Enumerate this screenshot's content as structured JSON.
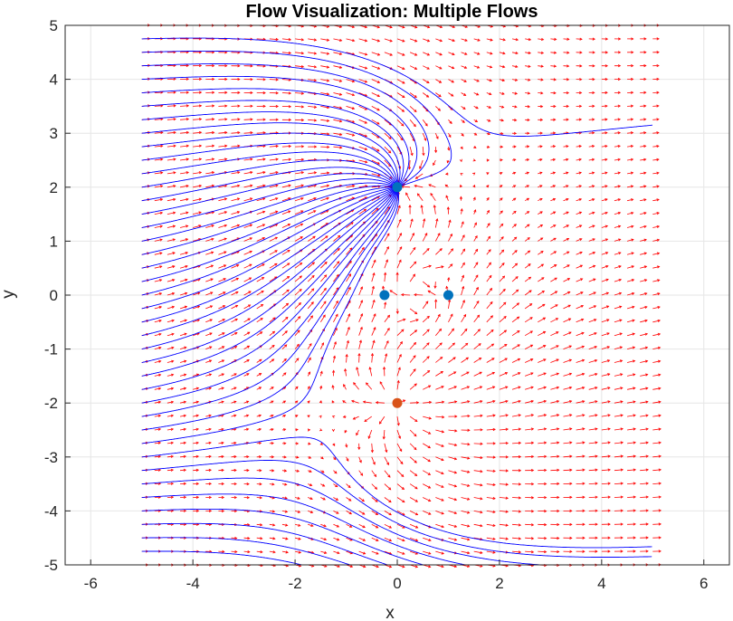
{
  "chart_data": {
    "type": "streamline",
    "title": "Flow Visualization: Multiple Flows",
    "xlabel": "x",
    "ylabel": "y",
    "xlim": [
      -6.5,
      6.5
    ],
    "ylim": [
      -5,
      5
    ],
    "xticks": [
      -6,
      -4,
      -2,
      0,
      2,
      4,
      6
    ],
    "yticks": [
      -5,
      -4,
      -3,
      -2,
      -1,
      0,
      1,
      2,
      3,
      4,
      5
    ],
    "grid": true,
    "field_domain": {
      "x": [
        -5,
        5
      ],
      "y": [
        -5,
        5
      ]
    },
    "uniform_flow": 1,
    "singularities": [
      {
        "kind": "sink",
        "x": 0,
        "y": 2,
        "strength": 1,
        "color": "#0072BD"
      },
      {
        "kind": "doublet_point",
        "x": -0.25,
        "y": 0,
        "color": "#0072BD"
      },
      {
        "kind": "doublet_point",
        "x": 1,
        "y": 0,
        "color": "#0072BD"
      },
      {
        "kind": "source",
        "x": 0,
        "y": -2,
        "strength": 1,
        "color": "#D95319"
      }
    ],
    "quiver_color": "#FF0000",
    "streamline_color": "#0000FF"
  }
}
